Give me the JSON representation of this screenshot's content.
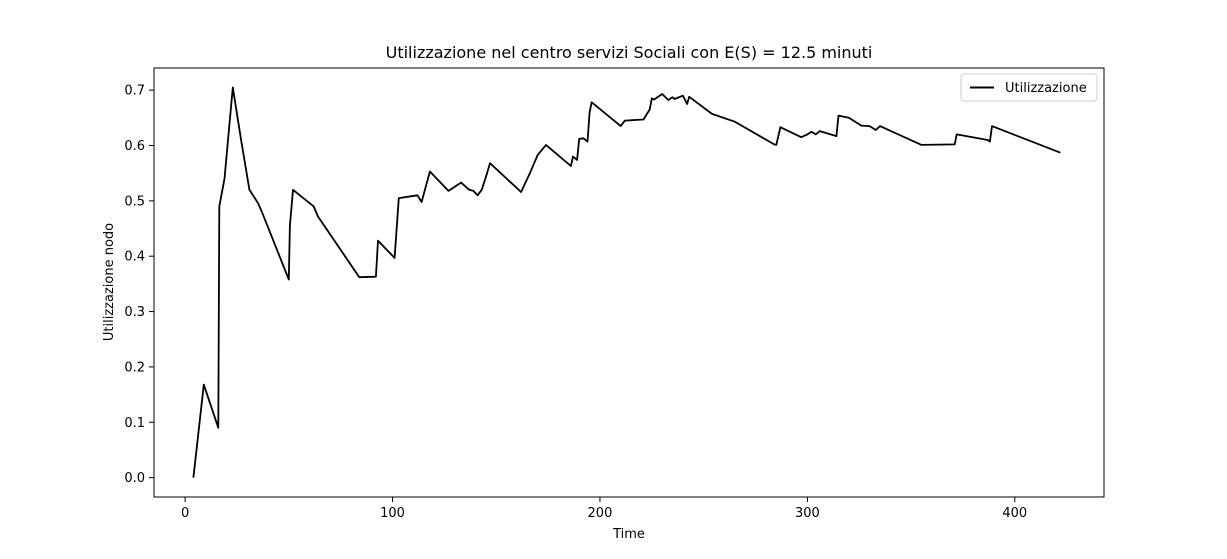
{
  "chart_data": {
    "type": "line",
    "title": "Utilizzazione nel centro servizi Sociali con E(S) = 12.5 minuti",
    "xlabel": "Time",
    "ylabel": "Utilizzazione nodo",
    "xlim": [
      -15,
      443
    ],
    "ylim": [
      -0.035,
      0.74
    ],
    "xticks": [
      0,
      100,
      200,
      300,
      400
    ],
    "yticks": [
      0.0,
      0.1,
      0.2,
      0.3,
      0.4,
      0.5,
      0.6,
      0.7
    ],
    "xtick_labels": [
      "0",
      "100",
      "200",
      "300",
      "400"
    ],
    "ytick_labels": [
      "0.0",
      "0.1",
      "0.2",
      "0.3",
      "0.4",
      "0.5",
      "0.6",
      "0.7"
    ],
    "grid": false,
    "legend": "upper-right",
    "colors": {
      "line": "#000000",
      "axes": "#000000",
      "background": "#ffffff"
    },
    "series": [
      {
        "name": "Utilizzazione",
        "x": [
          4,
          9,
          16,
          16.5,
          19,
          23,
          27,
          31,
          35,
          37,
          50,
          50.5,
          52,
          62,
          64,
          84,
          92,
          93,
          101,
          103,
          112,
          114,
          118,
          127,
          133,
          137,
          139,
          141,
          143,
          145,
          147,
          162,
          166,
          170,
          174,
          186,
          187,
          189,
          190,
          192,
          194,
          195,
          196,
          210,
          212,
          221,
          224,
          225,
          226,
          230,
          233,
          234,
          235,
          236,
          240,
          242,
          243,
          254,
          265,
          284,
          285,
          287,
          297,
          300,
          302,
          304,
          306,
          314,
          315,
          320,
          326,
          330,
          333,
          335,
          355,
          371,
          372,
          387,
          388,
          389,
          422
        ],
        "y": [
          0.0,
          0.168,
          0.09,
          0.49,
          0.54,
          0.705,
          0.61,
          0.52,
          0.497,
          0.48,
          0.358,
          0.455,
          0.52,
          0.49,
          0.472,
          0.362,
          0.363,
          0.428,
          0.397,
          0.505,
          0.51,
          0.498,
          0.553,
          0.518,
          0.533,
          0.52,
          0.518,
          0.51,
          0.52,
          0.543,
          0.568,
          0.516,
          0.548,
          0.583,
          0.601,
          0.563,
          0.58,
          0.574,
          0.612,
          0.613,
          0.607,
          0.66,
          0.678,
          0.635,
          0.645,
          0.647,
          0.665,
          0.685,
          0.683,
          0.693,
          0.682,
          0.685,
          0.687,
          0.684,
          0.69,
          0.675,
          0.688,
          0.657,
          0.643,
          0.602,
          0.601,
          0.633,
          0.615,
          0.62,
          0.625,
          0.62,
          0.626,
          0.617,
          0.654,
          0.65,
          0.636,
          0.635,
          0.628,
          0.635,
          0.601,
          0.602,
          0.62,
          0.61,
          0.607,
          0.635,
          0.587
        ]
      }
    ]
  }
}
